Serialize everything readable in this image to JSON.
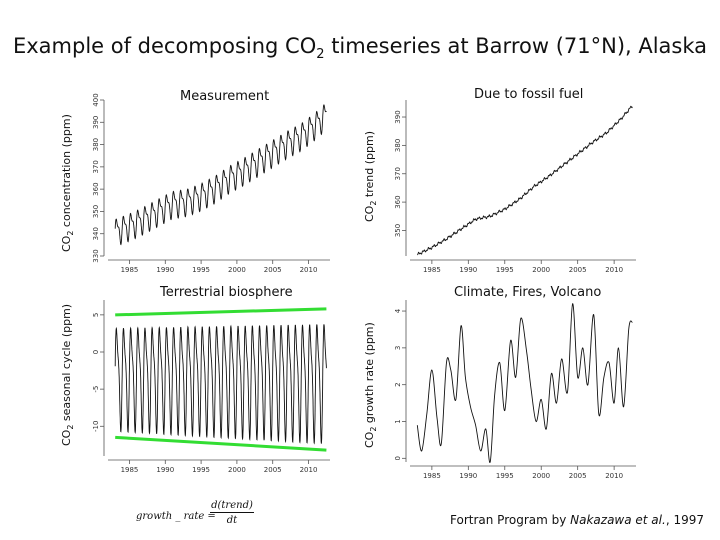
{
  "slide": {
    "title_main": "Example of decomposing CO",
    "title_sub": "2",
    "title_rest": " timeseries at Barrow (71°N), Alaska",
    "footer_pre": "Fortran Program by ",
    "footer_italic": "Nakazawa et al.",
    "footer_post": ", 1997",
    "formula_lhs": "growth _ rate  =",
    "formula_num": "d(trend)",
    "formula_den": "dt"
  },
  "chart_data": [
    {
      "type": "line",
      "title": "Measurement",
      "ylabel_pre": "CO",
      "ylabel_sub": "2",
      "ylabel_post": " concentration (ppm)",
      "xlim": [
        1982,
        2013
      ],
      "ylim": [
        330,
        400
      ],
      "xticks": [
        1985,
        1990,
        1995,
        2000,
        2005,
        2010
      ],
      "yticks": [
        330,
        340,
        350,
        360,
        370,
        380,
        390,
        400
      ],
      "series": [
        {
          "name": "measured",
          "start_value": 341,
          "end_value": 395.5,
          "seasonal_amplitude_ppm": 9,
          "description_years": [
            1983,
            2012
          ]
        }
      ]
    },
    {
      "type": "line",
      "title": "Due to fossil fuel",
      "ylabel_pre": "CO",
      "ylabel_sub": "2",
      "ylabel_post": " trend (ppm)",
      "xlim": [
        1982,
        2013
      ],
      "ylim": [
        341,
        396
      ],
      "xticks": [
        1985,
        1990,
        1995,
        2000,
        2005,
        2010
      ],
      "yticks": [
        350,
        360,
        370,
        380,
        390
      ],
      "series": [
        {
          "name": "trend",
          "x": [
            1983,
            1985,
            1987,
            1989,
            1991,
            1993,
            1995,
            1997,
            1999,
            2001,
            2003,
            2005,
            2007,
            2009,
            2011,
            2012.5
          ],
          "values": [
            341.5,
            344,
            347,
            350.5,
            354,
            355,
            357.5,
            361,
            365.5,
            369,
            373,
            377,
            381,
            384.5,
            389.5,
            394
          ]
        }
      ]
    },
    {
      "type": "line",
      "title": "Terrestrial biosphere",
      "ylabel_pre": "CO",
      "ylabel_sub": "2",
      "ylabel_post": " seasonal cycle (ppm)",
      "xlim": [
        1982,
        2013
      ],
      "ylim": [
        -14,
        7
      ],
      "xticks": [
        1985,
        1990,
        1995,
        2000,
        2005,
        2010
      ],
      "yticks": [
        -10,
        -5,
        0,
        5
      ],
      "series": [
        {
          "name": "seasonal",
          "upper_envelope": 5.5,
          "lower_envelope": -12
        }
      ],
      "envelope_lines": [
        {
          "name": "upper",
          "x": [
            1983,
            2012.5
          ],
          "values": [
            5.0,
            5.8
          ],
          "color": "#33dd33"
        },
        {
          "name": "lower",
          "x": [
            1983,
            2012.5
          ],
          "values": [
            -11.5,
            -13.2
          ],
          "color": "#33dd33"
        }
      ]
    },
    {
      "type": "line",
      "title": "Climate, Fires, Volcano",
      "ylabel_pre": "CO",
      "ylabel_sub": "2",
      "ylabel_post": " growth rate (ppm)",
      "xlim": [
        1982,
        2013
      ],
      "ylim": [
        -0.1,
        4.3
      ],
      "xticks": [
        1985,
        1990,
        1995,
        2000,
        2005,
        2010
      ],
      "yticks": [
        0,
        1,
        2,
        3,
        4
      ],
      "series": [
        {
          "name": "growth_rate",
          "x": [
            1983,
            1983.6,
            1984.3,
            1985,
            1985.7,
            1986.3,
            1987,
            1987.6,
            1988.3,
            1989,
            1989.6,
            1990.3,
            1991,
            1991.7,
            1992.4,
            1993,
            1993.6,
            1994.3,
            1995,
            1995.8,
            1996.5,
            1997.2,
            1998,
            1998.6,
            1999.3,
            2000,
            2000.7,
            2001.4,
            2002.1,
            2002.8,
            2003.6,
            2004.3,
            2005,
            2005.7,
            2006.4,
            2007.2,
            2007.9,
            2008.6,
            2009.3,
            2010,
            2010.6,
            2011.3,
            2012,
            2012.5
          ],
          "values": [
            0.9,
            0.2,
            1.2,
            2.4,
            1.1,
            0.4,
            2.6,
            2.4,
            1.6,
            3.6,
            2.2,
            1.4,
            0.9,
            0.2,
            0.8,
            -0.1,
            1.7,
            2.6,
            1.3,
            3.2,
            2.2,
            3.8,
            2.9,
            1.9,
            1.0,
            1.6,
            0.8,
            2.3,
            1.5,
            2.7,
            1.8,
            4.2,
            2.2,
            3.0,
            2.0,
            3.9,
            1.2,
            2.2,
            2.6,
            1.5,
            3.0,
            1.4,
            3.5,
            3.7
          ]
        }
      ]
    }
  ]
}
